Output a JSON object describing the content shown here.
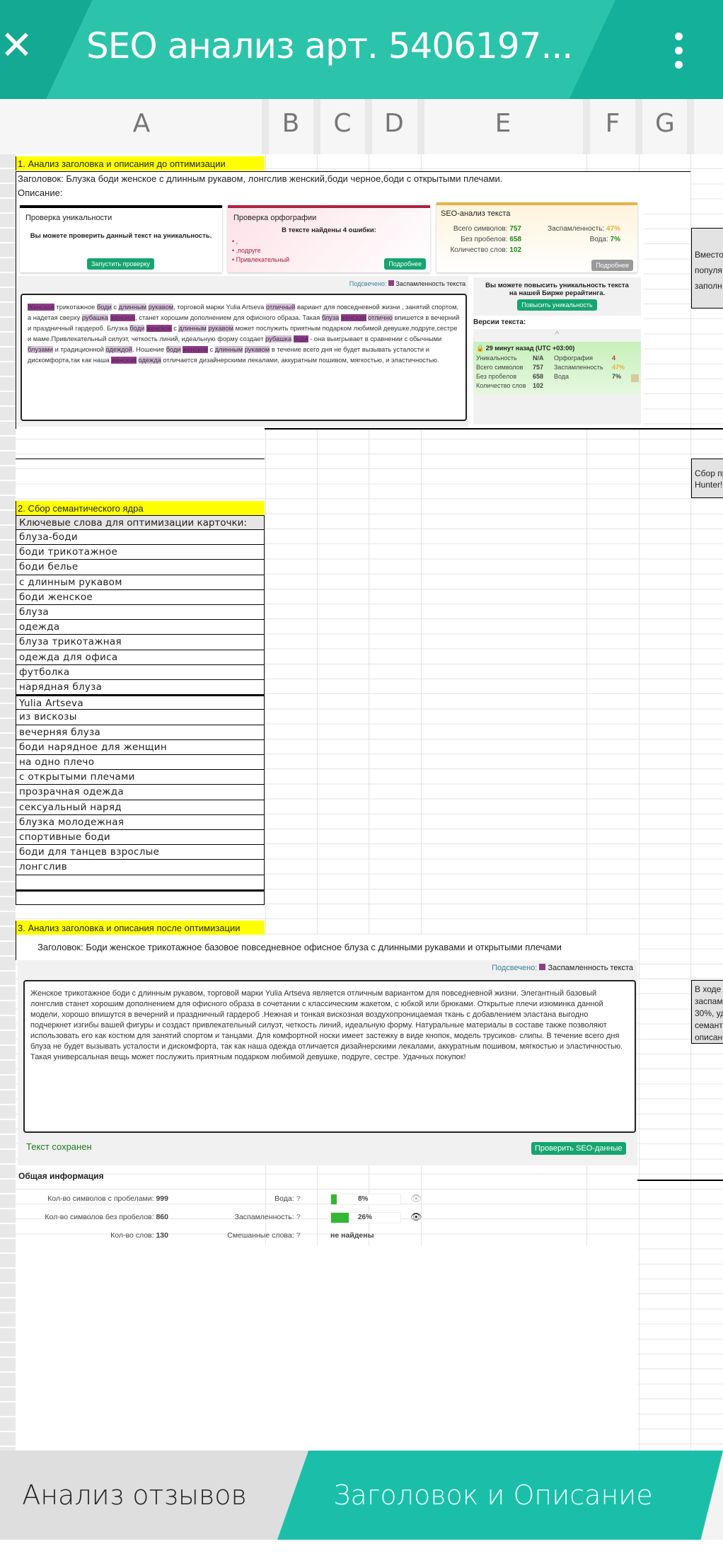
{
  "appbar": {
    "title": "SEO анализ  арт. 5406197...",
    "close_icon": "close-icon",
    "menu_icon": "more-vert-icon",
    "color": "#2bc4ab"
  },
  "columns": [
    "A",
    "B",
    "C",
    "D",
    "E",
    "F",
    "G"
  ],
  "section1": {
    "heading": "1. Анализ заголовка и описания до оптимизации",
    "title_row": "Заголовок: Блузка боди женское с длинным рукавом, лонгслив женский,боди черное,боди с открытыми плечами.",
    "description_label": "Описание:",
    "uniqueness": {
      "title": "Проверка уникальности",
      "text": "Вы можете проверить данный текст на уникальность.",
      "button": "Запустить проверку"
    },
    "spelling": {
      "title": "Проверка орфографии",
      "summary": "В тексте найдены 4 ошибки:",
      "errors": [
        ",",
        ",подруге",
        "Привлекательный"
      ],
      "button": "Подробнее"
    },
    "seo": {
      "title": "SEO-анализ текста",
      "total_label": "Всего символов:",
      "total": "757",
      "nospace_label": "Без пробелов:",
      "nospace": "658",
      "words_label": "Количество слов:",
      "words": "102",
      "spam_label": "Заспамленность:",
      "spam": "47%",
      "water_label": "Вода:",
      "water": "7%",
      "button": "Подробнее"
    },
    "highlight_label": "Подсвечено:",
    "highlight_legend": "Заспамленность текста",
    "text_segments": [
      {
        "t": "Женское",
        "h": 2
      },
      {
        "t": " трикотажное ",
        "h": 0
      },
      {
        "t": "боди",
        "h": 1
      },
      {
        "t": " с ",
        "h": 0
      },
      {
        "t": "длинным",
        "h": 1
      },
      {
        "t": " ",
        "h": 0
      },
      {
        "t": "рукавом",
        "h": 1
      },
      {
        "t": ", торговой марки Yulia Artseva ",
        "h": 0
      },
      {
        "t": "отличный",
        "h": 1
      },
      {
        "t": " вариант для повседневной жизни , занятий спортом, а надетая сверху ",
        "h": 0
      },
      {
        "t": "рубашка",
        "h": 1
      },
      {
        "t": " ",
        "h": 0
      },
      {
        "t": "женское",
        "h": 2
      },
      {
        "t": ", станет хорошим дополнением для офисного образа. Такая ",
        "h": 0
      },
      {
        "t": "блуза",
        "h": 1
      },
      {
        "t": " ",
        "h": 0
      },
      {
        "t": "женская",
        "h": 2
      },
      {
        "t": " ",
        "h": 0
      },
      {
        "t": "отлично",
        "h": 1
      },
      {
        "t": " впишется в вечерний и праздничный гардероб. Блузка ",
        "h": 0
      },
      {
        "t": "боди",
        "h": 1
      },
      {
        "t": " ",
        "h": 0
      },
      {
        "t": "женское",
        "h": 2
      },
      {
        "t": " с ",
        "h": 0
      },
      {
        "t": "длинным",
        "h": 1
      },
      {
        "t": " ",
        "h": 0
      },
      {
        "t": "рукавом",
        "h": 1
      },
      {
        "t": " может послужить приятным подарком любимой девушке,подруге,сестре и маме.Привлекательный силуэт, четкость линий, идеальную форму создает ",
        "h": 0
      },
      {
        "t": "рубашка",
        "h": 1
      },
      {
        "t": " ",
        "h": 0
      },
      {
        "t": "боди",
        "h": 2
      },
      {
        "t": " - она выигрывает в сравнении с обычными ",
        "h": 0
      },
      {
        "t": "блузами",
        "h": 1
      },
      {
        "t": " и традиционной ",
        "h": 0
      },
      {
        "t": "одеждой",
        "h": 1
      },
      {
        "t": ". Ношение ",
        "h": 0
      },
      {
        "t": "боди",
        "h": 1
      },
      {
        "t": " ",
        "h": 0
      },
      {
        "t": "женское",
        "h": 2
      },
      {
        "t": " с ",
        "h": 0
      },
      {
        "t": "длинным",
        "h": 1
      },
      {
        "t": " ",
        "h": 0
      },
      {
        "t": "рукавом",
        "h": 1
      },
      {
        "t": " в течение всего дня не будет вызывать усталости и дискомфорта,так как наша ",
        "h": 0
      },
      {
        "t": "женская",
        "h": 2
      },
      {
        "t": " ",
        "h": 0
      },
      {
        "t": "одежда",
        "h": 1
      },
      {
        "t": " отличается дизайнерскими лекалами, аккуратным пошивом, мягкостью, и эластичностью.",
        "h": 0
      }
    ],
    "promo": {
      "text": "Вы можете повысить уникальность текста на нашей Бирже рерайтинга.",
      "button": "Повысить уникальность"
    },
    "versions": {
      "label": "Версии текста:",
      "time": "29 минут назад (UTC +03:00)",
      "uniq_label": "Уникальность",
      "uniq": "N/A",
      "total_label": "Всего символов",
      "total": "757",
      "nospace_label": "Без пробелов",
      "nospace": "658",
      "words_label": "Количество слов",
      "words": "102",
      "spell_label": "Орфография",
      "spell": "4",
      "spam_label": "Заспамленность",
      "spam": "47%",
      "water_label": "Вода",
      "water": "7%"
    }
  },
  "side_notes": {
    "note1": "Вместо\nпопуля\nзаполн",
    "note2": "Сбор пр\nHunter!",
    "note3": "В ходе\nзаспам\n30%, уд\nсемант\nописан"
  },
  "section2": {
    "heading": "2. Сбор семантического ядра",
    "list_header": "Ключевые слова для оптимизации карточки:",
    "keywords": [
      "блуза-боди",
      "боди трикотажное",
      "боди белье",
      "с длинным рукавом",
      "боди женское",
      "блуза",
      "одежда",
      "блуза трикотажная",
      "одежда для офиса",
      "футболка",
      "нарядная блуза",
      "Yulia Artseva",
      "из вискозы",
      "вечерняя блуза",
      "боди нарядное для женщин",
      "на одно плечо",
      "с открытыми плечами",
      "прозрачная одежда",
      "сексуальный наряд",
      "блузка молодежная",
      "спортивные боди",
      "боди для танцев взрослые",
      "лонгслив",
      "",
      ""
    ]
  },
  "section3": {
    "heading": "3. Анализ заголовка и описания после оптимизации",
    "title_row": "Заголовок: Боди женское трикотажное базовое повседневное офисное блуза с длинными рукавами и открытыми плечами",
    "highlight_label": "Подсвечено:",
    "highlight_legend": "Заспамленность текста",
    "text": "Женское трикотажное боди с длинным рукавом, торговой марки Yulia Artseva является отличным вариантом для повседневной жизни. Элегантный  базовый лонгслив  станет хорошим дополнением для офисного образа в сочетании с классическим жакетом, с юбкой или брюками. Открытые плечи изюминка  данной модели,  хорошо впишутся в  вечерний и праздничный гардероб .Нежная и тонкая вискозная воздухопроницаемая ткань с добавлением эластана выгодно подчеркнет изгибы вашей фигуры и создаст привлекательный силуэт,  четкость линий, идеальную форму. Натуральные материалы в составе также позволяют использовать его как костюм для занятий спортом и танцами. Для комфортной носки  имеет застежку в виде кнопок, модель трусиков- слипы.  В течение всего дня блуза не будет вызывать усталости и дискомфорта, так как наша  одежда отличается дизайнерскими лекалами, аккуратным пошивом, мягкостью и эластичностью. Такая универсальная вещь может послужить приятным подарком любимой девушке, подруге, сестре. Удачных покупок!",
    "saved_status": "Текст сохранен",
    "check_button": "Проверить SEO-данные",
    "general_info": "Общая информация",
    "chars_with_spaces_label": "Кол-во символов с пробелами:",
    "chars_with_spaces": "999",
    "chars_no_spaces_label": "Кол-во символов без пробелов:",
    "chars_no_spaces": "860",
    "words_label": "Кол-во слов:",
    "words": "130",
    "water_label": "Вода:",
    "water": "8%",
    "water_value": 8,
    "spam_label": "Заспамленность:",
    "spam": "26%",
    "spam_value": 26,
    "mixed_label": "Смешанные слова:",
    "mixed": "не найдены",
    "help": "?"
  },
  "bottom_tabs": [
    {
      "label": "Анализ отзывов",
      "active": false
    },
    {
      "label": "Заголовок и Описание",
      "active": true
    }
  ],
  "colors": {
    "accent": "#1bbfa9",
    "highlight_yellow": "#ffff00",
    "spam_highlight": "#8b3f86",
    "green_button": "#16a56f"
  }
}
